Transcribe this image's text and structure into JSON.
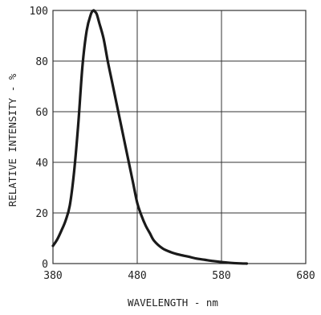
{
  "chart_data": {
    "type": "line",
    "title": "",
    "xlabel": "WAVELENGTH - nm",
    "ylabel": "RELATIVE INTENSITY - %",
    "xlim": [
      380,
      680
    ],
    "ylim": [
      0,
      100
    ],
    "xticks": [
      "380",
      "480",
      "580",
      "680"
    ],
    "yticks": [
      "0",
      "20",
      "40",
      "60",
      "80",
      "100"
    ],
    "grid": true,
    "line_color": "#1a1a1a",
    "grid_color": "#333333",
    "series": [
      {
        "x": [
          380,
          385,
          390,
          395,
          400,
          405,
          410,
          415,
          420,
          425,
          428,
          430,
          432,
          435,
          440,
          445,
          450,
          455,
          460,
          465,
          470,
          475,
          480,
          485,
          490,
          495,
          500,
          510,
          520,
          530,
          540,
          550,
          560,
          570,
          580,
          590,
          600,
          610
        ],
        "y": [
          7,
          9.5,
          13,
          17,
          23,
          36,
          55,
          78,
          92,
          98.5,
          100,
          99.5,
          98.5,
          95,
          89,
          80,
          72,
          64,
          56,
          48,
          40,
          32,
          24,
          19,
          15,
          12,
          9,
          6,
          4.5,
          3.5,
          2.8,
          2,
          1.5,
          1,
          0.6,
          0.3,
          0.1,
          0
        ]
      }
    ]
  }
}
